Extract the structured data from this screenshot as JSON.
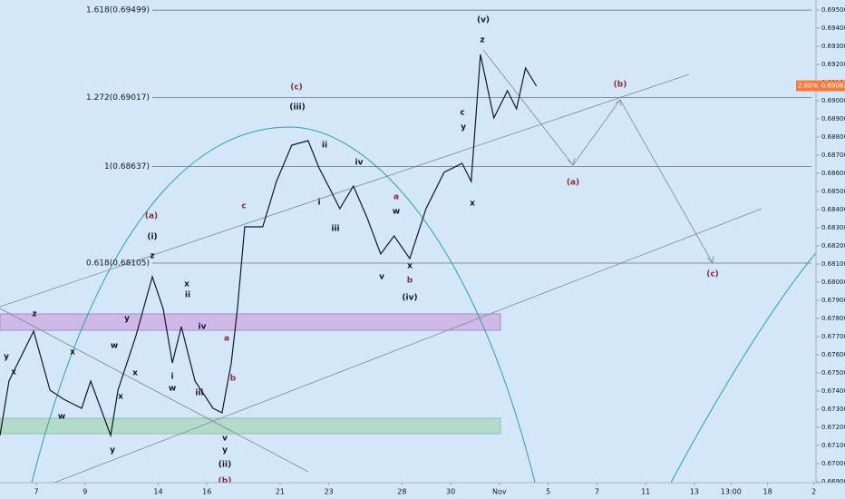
{
  "chart_data": {
    "type": "line",
    "color": "#131722",
    "x": [
      -1.49,
      -1.12,
      -0.11,
      0.56,
      1.12,
      1.86,
      2.23,
      3.05,
      3.35,
      4.09,
      4.76,
      5.2,
      5.58,
      5.95,
      6.51,
      7.25,
      7.62,
      8.0,
      8.25,
      8.55,
      9.29,
      9.85,
      10.48,
      11.15,
      11.6,
      12.08,
      12.45,
      13.01,
      13.57,
      14.13,
      14.68,
      15.32,
      15.99,
      16.73,
      17.47,
      17.84,
      18.22,
      18.77,
      19.33,
      19.7,
      20.07,
      20.52
    ],
    "values": [
      0.67155,
      0.67455,
      0.6773,
      0.67405,
      0.67355,
      0.67305,
      0.67455,
      0.67155,
      0.67405,
      0.67705,
      0.6803,
      0.67855,
      0.67555,
      0.67755,
      0.67455,
      0.67305,
      0.6728,
      0.67555,
      0.67855,
      0.68305,
      0.68305,
      0.68555,
      0.68755,
      0.6878,
      0.6863,
      0.68505,
      0.68405,
      0.6853,
      0.68355,
      0.68155,
      0.68255,
      0.6813,
      0.68405,
      0.68605,
      0.68655,
      0.68555,
      0.69255,
      0.68905,
      0.69055,
      0.68955,
      0.6918,
      0.6908
    ],
    "xlim": [
      -1.49,
      31.8
    ],
    "ylim": [
      0.66895,
      0.69555
    ],
    "xticks": [
      {
        "value": 0,
        "label": "7"
      },
      {
        "value": 2,
        "label": "9"
      },
      {
        "value": 5,
        "label": "14"
      },
      {
        "value": 7,
        "label": "16"
      },
      {
        "value": 10,
        "label": "21"
      },
      {
        "value": 12,
        "label": "23"
      },
      {
        "value": 15,
        "label": "28"
      },
      {
        "value": 17,
        "label": "30"
      },
      {
        "value": 19,
        "label": "Nov"
      },
      {
        "value": 21,
        "label": "5"
      },
      {
        "value": 23,
        "label": "7"
      },
      {
        "value": 25,
        "label": "11"
      },
      {
        "value": 27,
        "label": "13"
      },
      {
        "value": 28.5,
        "label": "13:00"
      },
      {
        "value": 30,
        "label": "18"
      },
      {
        "value": 31.9,
        "label": "2"
      }
    ],
    "yticks": [
      {
        "value": 0.669,
        "label": "0.66900"
      },
      {
        "value": 0.67,
        "label": "0.67000"
      },
      {
        "value": 0.671,
        "label": "0.67100"
      },
      {
        "value": 0.672,
        "label": "0.67200"
      },
      {
        "value": 0.673,
        "label": "0.67300"
      },
      {
        "value": 0.674,
        "label": "0.67400"
      },
      {
        "value": 0.675,
        "label": "0.67500"
      },
      {
        "value": 0.676,
        "label": "0.67600"
      },
      {
        "value": 0.677,
        "label": "0.67700"
      },
      {
        "value": 0.678,
        "label": "0.67800"
      },
      {
        "value": 0.679,
        "label": "0.67900"
      },
      {
        "value": 0.68,
        "label": "0.68000"
      },
      {
        "value": 0.681,
        "label": "0.68100"
      },
      {
        "value": 0.682,
        "label": "0.68200"
      },
      {
        "value": 0.683,
        "label": "0.68300"
      },
      {
        "value": 0.684,
        "label": "0.68400"
      },
      {
        "value": 0.685,
        "label": "0.68500"
      },
      {
        "value": 0.686,
        "label": "0.68600"
      },
      {
        "value": 0.687,
        "label": "0.68700"
      },
      {
        "value": 0.688,
        "label": "0.68800"
      },
      {
        "value": 0.689,
        "label": "0.68900"
      },
      {
        "value": 0.69,
        "label": "0.69000"
      },
      {
        "value": 0.691,
        "label": "0.69100"
      },
      {
        "value": 0.692,
        "label": "0.69200"
      },
      {
        "value": 0.693,
        "label": "0.69300"
      },
      {
        "value": 0.694,
        "label": "0.69400"
      },
      {
        "value": 0.695,
        "label": "0.69500"
      }
    ],
    "levels": [
      {
        "value": 0.69499,
        "label": "1.618(0.69499)"
      },
      {
        "value": 0.69017,
        "label": "1.272(0.69017)"
      },
      {
        "value": 0.68637,
        "label": "1(0.68637)"
      },
      {
        "value": 0.68105,
        "label": "0.618(0.68105)"
      }
    ],
    "last_price": {
      "value": 0.69082,
      "label": "0.69082"
    },
    "change": "2.80%",
    "annotations": [
      "(v)",
      "z",
      "(c)",
      "(iii)",
      "c",
      "y",
      "ii",
      "iv",
      "i",
      "iii",
      "a",
      "w",
      "v",
      "x",
      "b",
      "(iv)",
      "x",
      "(a)",
      "(i)",
      "z",
      "c",
      "x",
      "ii",
      "iv",
      "y",
      "w",
      "x",
      "i",
      "w",
      "iii",
      "a",
      "b",
      "x",
      "v",
      "y",
      "(ii)",
      "(b)",
      "z",
      "y",
      "x",
      "x",
      "w",
      "y",
      "(b)",
      "(a)",
      "(c)"
    ]
  }
}
